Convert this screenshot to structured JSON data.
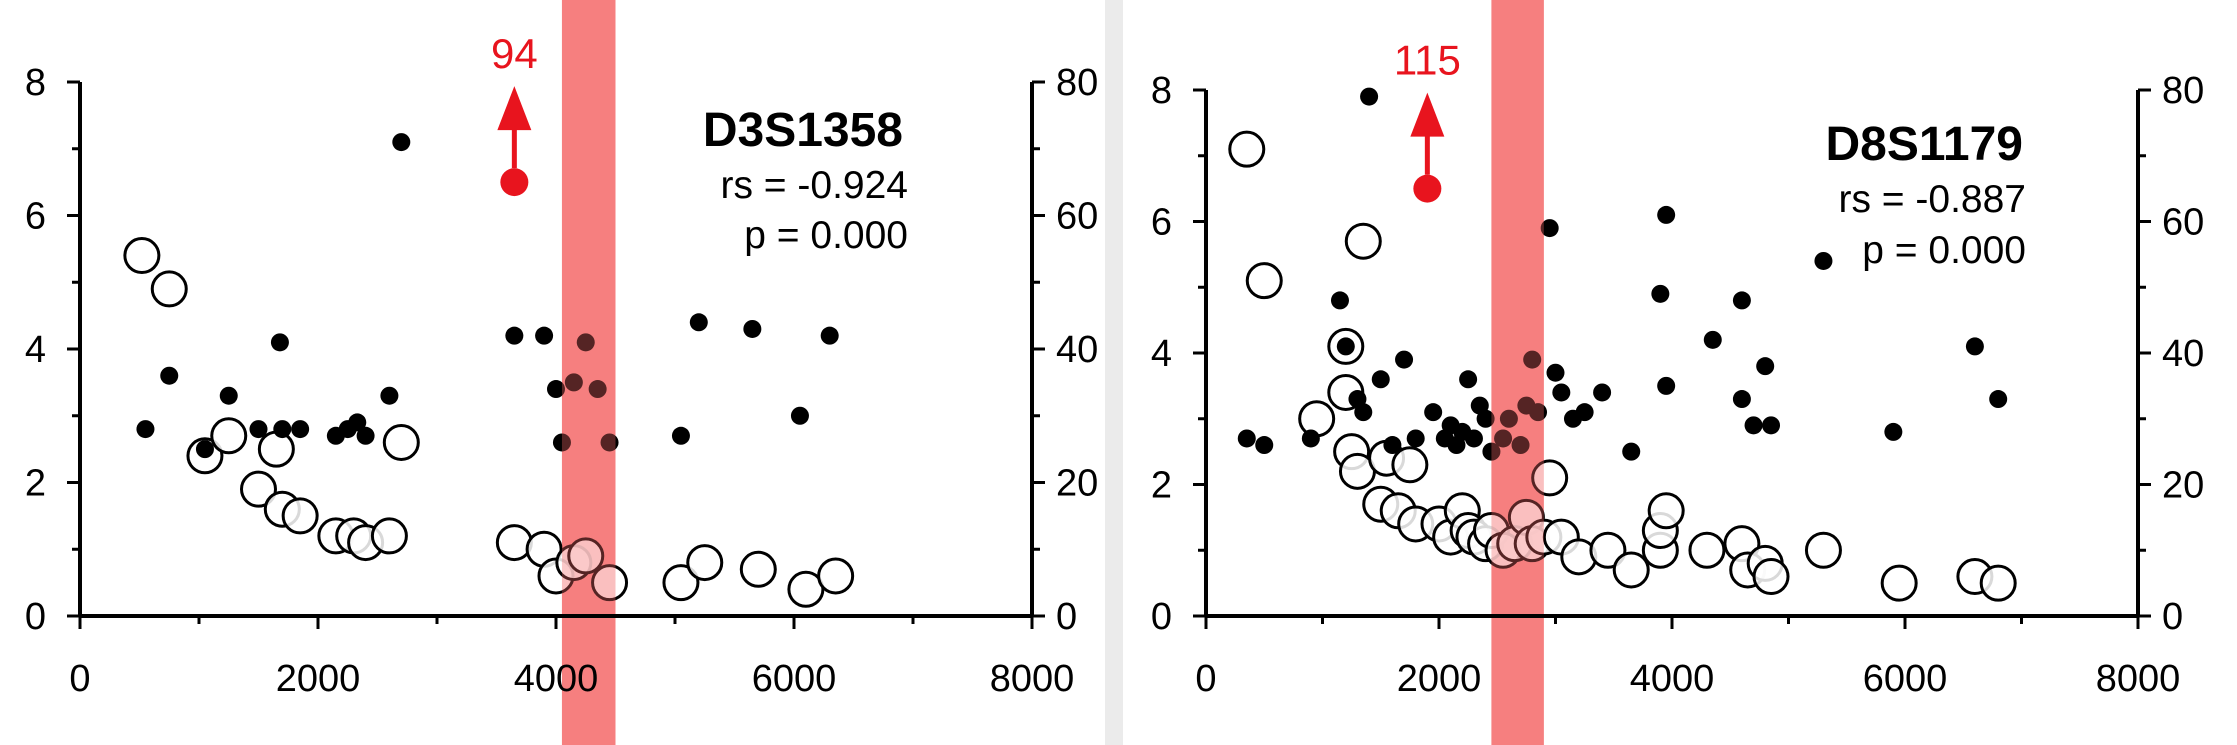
{
  "colors": {
    "highlight_band": "#f46666",
    "marker": "#e8141e",
    "axis": "#000000",
    "divider": "#ebebeb"
  },
  "chart_data": [
    {
      "type": "scatter",
      "title": "D3S1358",
      "stat_label": "rs = -0.924",
      "p_label": "p = 0.000",
      "xlim": [
        0,
        8000
      ],
      "xticks": [
        "0",
        "2000",
        "4000",
        "6000",
        "8000"
      ],
      "ylim_left": [
        0,
        8
      ],
      "yticks_left": [
        "0",
        "2",
        "4",
        "6",
        "8"
      ],
      "ylim_right": [
        0,
        80
      ],
      "yticks_right": [
        "0",
        "20",
        "40",
        "60",
        "80"
      ],
      "highlight_band_x": [
        4050,
        4500
      ],
      "marker": {
        "x": 3650,
        "y": 6.5,
        "label": "94",
        "direction": "up"
      },
      "series": [
        {
          "axis": "left",
          "style": "filled",
          "points": [
            [
              550,
              2.8
            ],
            [
              750,
              3.6
            ],
            [
              1050,
              2.5
            ],
            [
              1250,
              3.3
            ],
            [
              1500,
              2.8
            ],
            [
              1680,
              4.1
            ],
            [
              1700,
              2.8
            ],
            [
              1850,
              2.8
            ],
            [
              2150,
              2.7
            ],
            [
              2250,
              2.8
            ],
            [
              2330,
              2.9
            ],
            [
              2400,
              2.7
            ],
            [
              2600,
              3.3
            ],
            [
              2700,
              7.1
            ],
            [
              3650,
              4.2
            ],
            [
              3900,
              4.2
            ],
            [
              4000,
              3.4
            ],
            [
              4050,
              2.6
            ],
            [
              4150,
              3.5
            ],
            [
              4250,
              4.1
            ],
            [
              4350,
              3.4
            ],
            [
              4450,
              2.6
            ],
            [
              5050,
              2.7
            ],
            [
              5200,
              4.4
            ],
            [
              5650,
              4.3
            ],
            [
              6050,
              3.0
            ],
            [
              6300,
              4.2
            ]
          ]
        },
        {
          "axis": "right",
          "style": "open",
          "points": [
            [
              520,
              54
            ],
            [
              750,
              49
            ],
            [
              1050,
              24
            ],
            [
              1250,
              27
            ],
            [
              1500,
              19
            ],
            [
              1650,
              25
            ],
            [
              1700,
              16
            ],
            [
              1850,
              15
            ],
            [
              2150,
              12
            ],
            [
              2300,
              12
            ],
            [
              2400,
              11
            ],
            [
              2600,
              12
            ],
            [
              2700,
              26
            ],
            [
              3650,
              11
            ],
            [
              3900,
              10
            ],
            [
              4000,
              6
            ],
            [
              4150,
              8
            ],
            [
              4250,
              9
            ],
            [
              4450,
              5
            ],
            [
              5050,
              5
            ],
            [
              5250,
              8
            ],
            [
              5700,
              7
            ],
            [
              6100,
              4
            ],
            [
              6350,
              6
            ]
          ]
        }
      ]
    },
    {
      "type": "scatter",
      "title": "D8S1179",
      "stat_label": "rs = -0.887",
      "p_label": "p = 0.000",
      "xlim": [
        0,
        8000
      ],
      "xticks": [
        "0",
        "2000",
        "4000",
        "6000",
        "8000"
      ],
      "ylim_left": [
        0,
        8
      ],
      "yticks_left": [
        "0",
        "2",
        "4",
        "6",
        "8"
      ],
      "ylim_right": [
        0,
        80
      ],
      "yticks_right": [
        "0",
        "20",
        "40",
        "60",
        "80"
      ],
      "highlight_band_x": [
        2450,
        2900
      ],
      "marker": {
        "x": 1900,
        "y": 6.5,
        "label": "115",
        "direction": "up"
      },
      "series": [
        {
          "axis": "left",
          "style": "filled",
          "points": [
            [
              350,
              2.7
            ],
            [
              500,
              2.6
            ],
            [
              900,
              2.7
            ],
            [
              1150,
              4.8
            ],
            [
              1200,
              4.1
            ],
            [
              1300,
              3.3
            ],
            [
              1350,
              3.1
            ],
            [
              1400,
              7.9
            ],
            [
              1500,
              3.6
            ],
            [
              1600,
              2.6
            ],
            [
              1700,
              3.9
            ],
            [
              1800,
              2.7
            ],
            [
              1950,
              3.1
            ],
            [
              2050,
              2.7
            ],
            [
              2100,
              2.9
            ],
            [
              2150,
              2.6
            ],
            [
              2200,
              2.8
            ],
            [
              2250,
              3.6
            ],
            [
              2300,
              2.7
            ],
            [
              2350,
              3.2
            ],
            [
              2400,
              3.0
            ],
            [
              2450,
              2.5
            ],
            [
              2550,
              2.7
            ],
            [
              2600,
              3.0
            ],
            [
              2700,
              2.6
            ],
            [
              2750,
              3.2
            ],
            [
              2800,
              3.9
            ],
            [
              2850,
              3.1
            ],
            [
              2950,
              5.9
            ],
            [
              3000,
              3.7
            ],
            [
              3050,
              3.4
            ],
            [
              3150,
              3.0
            ],
            [
              3250,
              3.1
            ],
            [
              3400,
              3.4
            ],
            [
              3650,
              2.5
            ],
            [
              3900,
              4.9
            ],
            [
              3950,
              6.1
            ],
            [
              3950,
              3.5
            ],
            [
              4350,
              4.2
            ],
            [
              4600,
              4.8
            ],
            [
              4600,
              3.3
            ],
            [
              4700,
              2.9
            ],
            [
              4800,
              3.8
            ],
            [
              4850,
              2.9
            ],
            [
              5300,
              5.4
            ],
            [
              5900,
              2.8
            ],
            [
              6600,
              4.1
            ],
            [
              6800,
              3.3
            ]
          ]
        },
        {
          "axis": "right",
          "style": "open",
          "points": [
            [
              350,
              71
            ],
            [
              500,
              51
            ],
            [
              950,
              30
            ],
            [
              1200,
              41
            ],
            [
              1200,
              34
            ],
            [
              1250,
              25
            ],
            [
              1350,
              57
            ],
            [
              1300,
              22
            ],
            [
              1500,
              17
            ],
            [
              1550,
              24
            ],
            [
              1650,
              16
            ],
            [
              1750,
              23
            ],
            [
              1800,
              14
            ],
            [
              2000,
              14
            ],
            [
              2100,
              12
            ],
            [
              2200,
              16
            ],
            [
              2250,
              13
            ],
            [
              2300,
              12
            ],
            [
              2400,
              11
            ],
            [
              2450,
              13
            ],
            [
              2550,
              10
            ],
            [
              2650,
              11
            ],
            [
              2750,
              15
            ],
            [
              2800,
              11
            ],
            [
              2900,
              12
            ],
            [
              2950,
              21
            ],
            [
              3050,
              12
            ],
            [
              3200,
              9
            ],
            [
              3450,
              10
            ],
            [
              3650,
              7
            ],
            [
              3900,
              10
            ],
            [
              3900,
              13
            ],
            [
              3950,
              16
            ],
            [
              4300,
              10
            ],
            [
              4600,
              11
            ],
            [
              4650,
              7
            ],
            [
              4800,
              8
            ],
            [
              4850,
              6
            ],
            [
              5300,
              10
            ],
            [
              5950,
              5
            ],
            [
              6600,
              6
            ],
            [
              6800,
              5
            ]
          ]
        }
      ]
    }
  ]
}
